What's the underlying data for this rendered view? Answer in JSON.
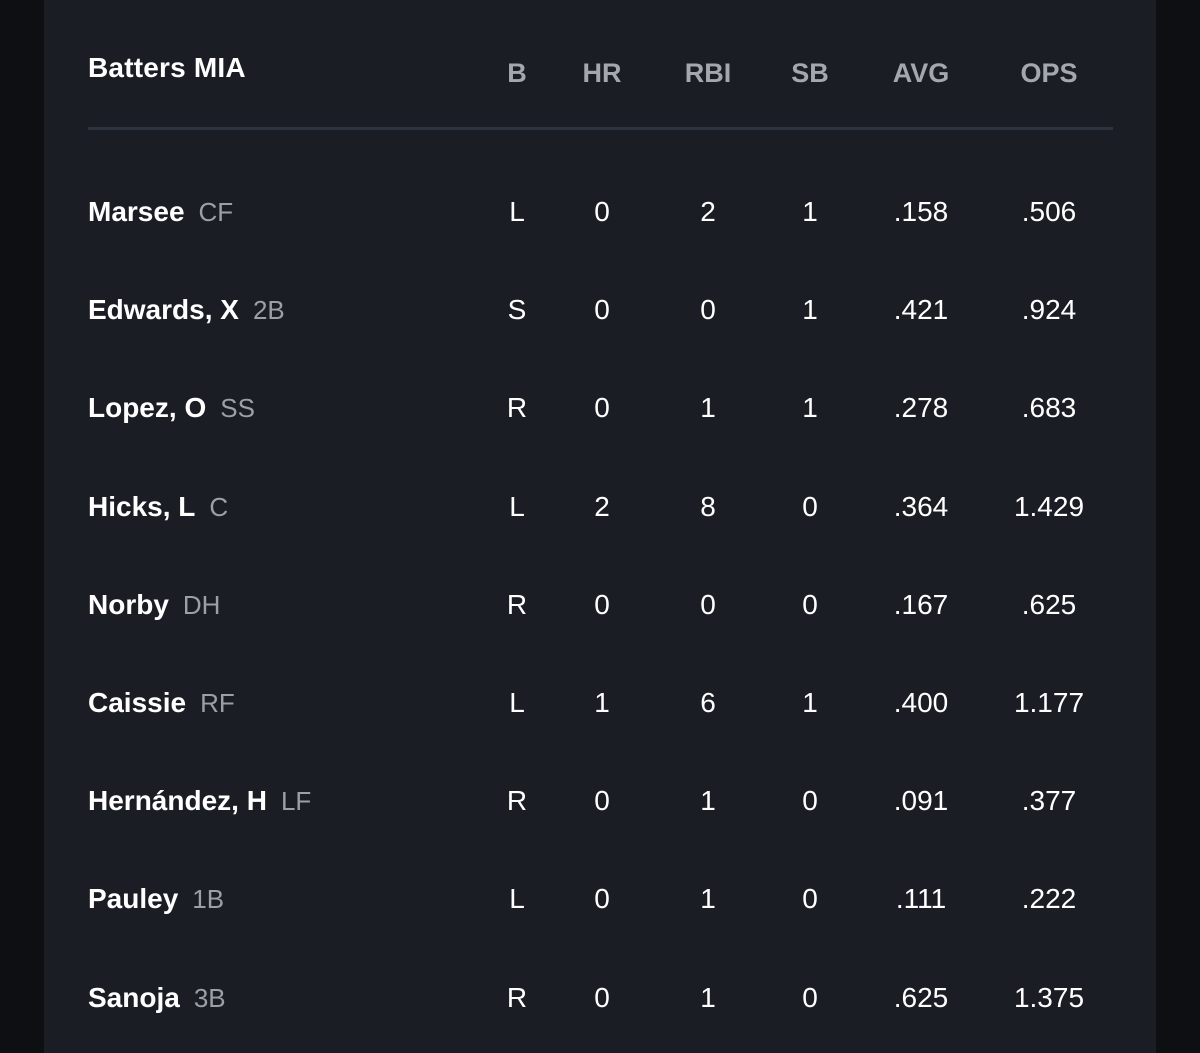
{
  "table": {
    "title": "Batters MIA",
    "columns": [
      "B",
      "HR",
      "RBI",
      "SB",
      "AVG",
      "OPS"
    ],
    "rows": [
      {
        "name": "Marsee",
        "pos": "CF",
        "b": "L",
        "hr": "0",
        "rbi": "2",
        "sb": "1",
        "avg": ".158",
        "ops": ".506"
      },
      {
        "name": "Edwards, X",
        "pos": "2B",
        "b": "S",
        "hr": "0",
        "rbi": "0",
        "sb": "1",
        "avg": ".421",
        "ops": ".924"
      },
      {
        "name": "Lopez, O",
        "pos": "SS",
        "b": "R",
        "hr": "0",
        "rbi": "1",
        "sb": "1",
        "avg": ".278",
        "ops": ".683"
      },
      {
        "name": "Hicks, L",
        "pos": "C",
        "b": "L",
        "hr": "2",
        "rbi": "8",
        "sb": "0",
        "avg": ".364",
        "ops": "1.429"
      },
      {
        "name": "Norby",
        "pos": "DH",
        "b": "R",
        "hr": "0",
        "rbi": "0",
        "sb": "0",
        "avg": ".167",
        "ops": ".625"
      },
      {
        "name": "Caissie",
        "pos": "RF",
        "b": "L",
        "hr": "1",
        "rbi": "6",
        "sb": "1",
        "avg": ".400",
        "ops": "1.177"
      },
      {
        "name": "Hernández, H",
        "pos": "LF",
        "b": "R",
        "hr": "0",
        "rbi": "1",
        "sb": "0",
        "avg": ".091",
        "ops": ".377"
      },
      {
        "name": "Pauley",
        "pos": "1B",
        "b": "L",
        "hr": "0",
        "rbi": "1",
        "sb": "0",
        "avg": ".111",
        "ops": ".222"
      },
      {
        "name": "Sanoja",
        "pos": "3B",
        "b": "R",
        "hr": "0",
        "rbi": "1",
        "sb": "0",
        "avg": ".625",
        "ops": "1.375"
      }
    ]
  },
  "colors": {
    "page_background": "#0d0f12",
    "panel_background": "#1a1e24",
    "divider": "#2c3440",
    "primary_text": "#ffffff",
    "secondary_text": "#a3a8ae"
  }
}
